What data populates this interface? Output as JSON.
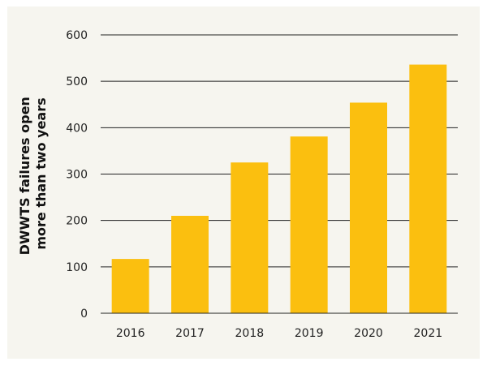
{
  "chart_data": {
    "type": "bar",
    "categories": [
      "2016",
      "2017",
      "2018",
      "2019",
      "2020",
      "2021"
    ],
    "values": [
      117,
      210,
      325,
      381,
      454,
      536
    ],
    "ylabel_lines": [
      "DWWTS failures open",
      "more than two years"
    ],
    "xlabel": "",
    "ylim": [
      0,
      600
    ],
    "yticks": [
      0,
      100,
      200,
      300,
      400,
      500,
      600
    ],
    "grid": true,
    "legend": "none",
    "colors": {
      "bar": "#fbbf0f",
      "grid": "#222222",
      "background": "#f6f5ef"
    }
  }
}
